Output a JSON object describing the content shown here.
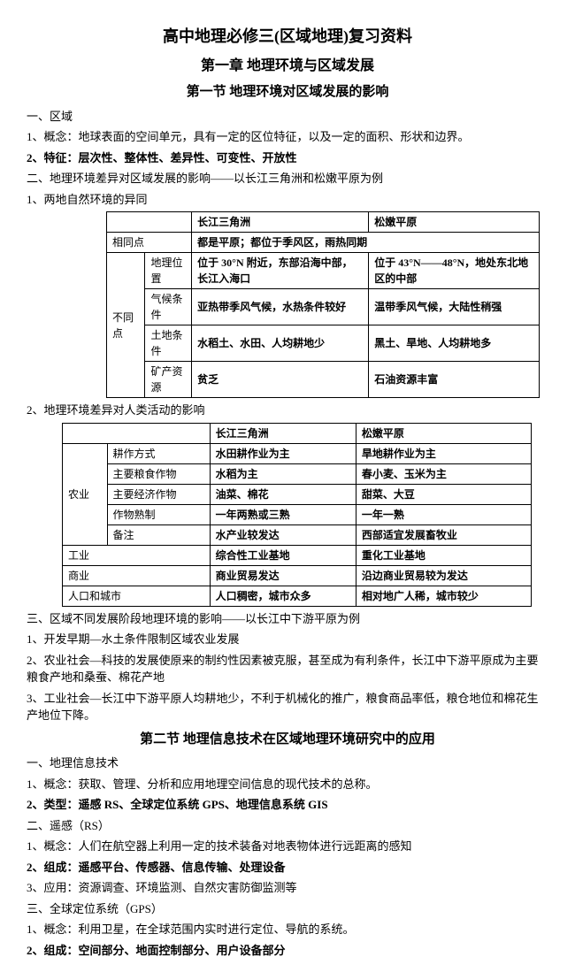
{
  "title": "高中地理必修三(区域地理)复习资料",
  "chapter1": "第一章 地理环境与区域发展",
  "section1": "第一节 地理环境对区域发展的影响",
  "p1": "一、区域",
  "p2": "1、概念：地球表面的空间单元，具有一定的区位特征，以及一定的面积、形状和边界。",
  "p3": "2、特征：层次性、整体性、差异性、可变性、开放性",
  "p4": "二、地理环境差异对区域发展的影响——以长江三角洲和松嫩平原为例",
  "p5": "1、两地自然环境的异同",
  "t1": {
    "h1": "长江三角洲",
    "h2": "松嫩平原",
    "r1c1": "相同点",
    "r1c2": "都是平原；都位于季风区，雨热同期",
    "r2c1": "不同点",
    "r2c2": "地理位置",
    "r2c3": "位于 30°N 附近，东部沿海中部，长江入海口",
    "r2c4": "位于 43°N——48°N，地处东北地区的中部",
    "r3c2": "气候条件",
    "r3c3": "亚热带季风气候，水热条件较好",
    "r3c4": "温带季风气候，大陆性稍强",
    "r4c2": "土地条件",
    "r4c3": "水稻土、水田、人均耕地少",
    "r4c4": "黑土、旱地、人均耕地多",
    "r5c2": "矿产资源",
    "r5c3": "贫乏",
    "r5c4": "石油资源丰富"
  },
  "p6": "2、地理环境差异对人类活动的影响",
  "t2": {
    "h1": "长江三角洲",
    "h2": "松嫩平原",
    "r1c1": "农业",
    "r1c2": "耕作方式",
    "r1c3": "水田耕作业为主",
    "r1c4": "旱地耕作业为主",
    "r2c2": "主要粮食作物",
    "r2c3": "水稻为主",
    "r2c4": "春小麦、玉米为主",
    "r3c2": "主要经济作物",
    "r3c3": "油菜、棉花",
    "r3c4": "甜菜、大豆",
    "r4c2": "作物熟制",
    "r4c3": "一年两熟或三熟",
    "r4c4": "一年一熟",
    "r5c2": "备注",
    "r5c3": "水产业较发达",
    "r5c4": "西部适宜发展畜牧业",
    "r6c1": "工业",
    "r6c3": "综合性工业基地",
    "r6c4": "重化工业基地",
    "r7c1": "商业",
    "r7c3": "商业贸易发达",
    "r7c4": "沿边商业贸易较为发达",
    "r8c1": "人口和城市",
    "r8c3": "人口稠密，城市众多",
    "r8c4": "相对地广人稀，城市较少"
  },
  "p7": "三、区域不同发展阶段地理环境的影响——以长江中下游平原为例",
  "p8": "1、开发早期—水土条件限制区域农业发展",
  "p9": "2、农业社会—科技的发展使原来的制约性因素被克服，甚至成为有利条件，长江中下游平原成为主要粮食产地和桑蚕、棉花产地",
  "p10": "3、工业社会—长江中下游平原人均耕地少，不利于机械化的推广，粮食商品率低，粮仓地位和棉花生产地位下降。",
  "section2": "第二节 地理信息技术在区域地理环境研究中的应用",
  "p11": "一、地理信息技术",
  "p12": "1、概念：获取、管理、分析和应用地理空间信息的现代技术的总称。",
  "p13": "2、类型：遥感 RS、全球定位系统 GPS、地理信息系统 GIS",
  "p14": "二、遥感（RS）",
  "p15": "1、概念：人们在航空器上利用一定的技术装备对地表物体进行远距离的感知",
  "p16": "2、组成：遥感平台、传感器、信息传输、处理设备",
  "p17": "3、应用：资源调查、环境监测、自然灾害防御监测等",
  "p18": "三、全球定位系统（GPS）",
  "p19": "1、概念：利用卫星，在全球范围内实时进行定位、导航的系统。",
  "p20": "2、组成：空间部分、地面控制部分、用户设备部分"
}
